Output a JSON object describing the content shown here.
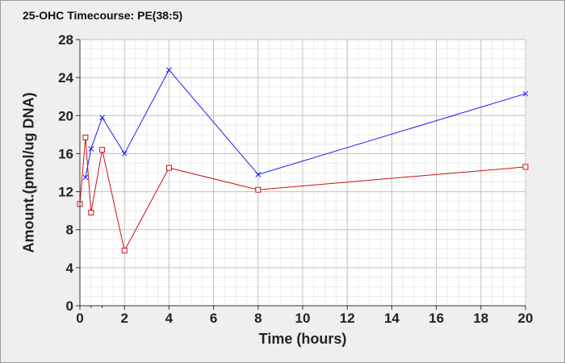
{
  "chart_data": {
    "type": "line",
    "title": "25-OHC Timecourse: PE(38:5)",
    "xlabel": "Time (hours)",
    "ylabel": "Amount.(pmol/ug DNA)",
    "xlim": [
      0,
      20
    ],
    "ylim": [
      0,
      28
    ],
    "xticks": [
      0,
      2,
      4,
      6,
      8,
      10,
      12,
      14,
      16,
      18,
      20
    ],
    "yticks": [
      0,
      4,
      8,
      12,
      16,
      20,
      24,
      28
    ],
    "xticks_minor": [
      0.5,
      1
    ],
    "grid": true,
    "legend": "none",
    "series": [
      {
        "color": "#1a1aff",
        "marker": "x",
        "x": [
          0.25,
          0.5,
          1,
          2,
          4,
          8,
          20
        ],
        "y": [
          13.5,
          16.5,
          19.8,
          16.0,
          24.8,
          13.8,
          22.3
        ]
      },
      {
        "color": "#cc1111",
        "marker": "square",
        "x": [
          0,
          0.25,
          0.5,
          1,
          2,
          4,
          8,
          20
        ],
        "y": [
          10.7,
          17.7,
          9.8,
          16.4,
          5.8,
          14.5,
          12.2,
          14.6
        ]
      }
    ]
  }
}
